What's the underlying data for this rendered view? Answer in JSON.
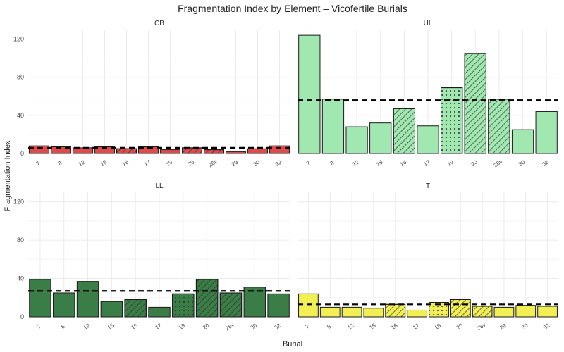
{
  "chart_data": {
    "type": "bar",
    "title": "Fragmentation Index by Element – Vicofertile Burials",
    "xlabel": "Burial",
    "ylabel": "Fragmentation Index",
    "ylim": [
      0,
      130
    ],
    "yticks": [
      0,
      40,
      80,
      120
    ],
    "grid": true,
    "categories": [
      "7",
      "8",
      "12",
      "15",
      "16",
      "17",
      "19",
      "20",
      "26v",
      "29",
      "30",
      "32"
    ],
    "patterns": [
      "none",
      "none",
      "none",
      "none",
      "stripe",
      "none",
      "dots",
      "stripe",
      "stripe",
      "none",
      "none",
      "none"
    ],
    "panels": [
      {
        "name": "CB",
        "color": "#e04a4a",
        "categories": [
          "7",
          "8",
          "12",
          "15",
          "16",
          "17",
          "19",
          "20",
          "26v",
          "29",
          "30",
          "32"
        ],
        "values": [
          8,
          7,
          6,
          7,
          5,
          7,
          4,
          6,
          4,
          2,
          5,
          8
        ],
        "patterns": [
          "none",
          "none",
          "none",
          "none",
          "stripe",
          "none",
          "none",
          "stripe",
          "stripe",
          "none",
          "none",
          "none"
        ],
        "mean": 6
      },
      {
        "name": "UL",
        "color": "#a1e8b0",
        "categories": [
          "7",
          "8",
          "12",
          "15",
          "16",
          "17",
          "19",
          "20",
          "26v",
          "30",
          "32"
        ],
        "values": [
          124,
          57,
          28,
          32,
          47,
          29,
          69,
          105,
          57,
          25,
          44
        ],
        "patterns": [
          "none",
          "none",
          "none",
          "none",
          "stripe",
          "none",
          "dots",
          "stripe",
          "stripe",
          "none",
          "none"
        ],
        "mean": 56
      },
      {
        "name": "LL",
        "color": "#3b7d47",
        "categories": [
          "7",
          "8",
          "12",
          "15",
          "16",
          "17",
          "19",
          "20",
          "26v",
          "30",
          "32"
        ],
        "values": [
          39,
          25,
          37,
          16,
          18,
          10,
          24,
          39,
          25,
          31,
          24
        ],
        "patterns": [
          "none",
          "none",
          "none",
          "none",
          "stripe",
          "none",
          "dots",
          "stripe",
          "stripe",
          "none",
          "none"
        ],
        "mean": 27
      },
      {
        "name": "T",
        "color": "#f2ef55",
        "categories": [
          "7",
          "8",
          "12",
          "15",
          "16",
          "17",
          "19",
          "20",
          "26v",
          "29",
          "30",
          "32"
        ],
        "values": [
          24,
          10,
          10,
          9,
          13,
          7,
          15,
          18,
          11,
          10,
          12,
          11
        ],
        "patterns": [
          "none",
          "none",
          "none",
          "none",
          "stripe",
          "none",
          "dots",
          "stripe",
          "stripe",
          "none",
          "none",
          "none"
        ],
        "mean": 13
      }
    ]
  }
}
